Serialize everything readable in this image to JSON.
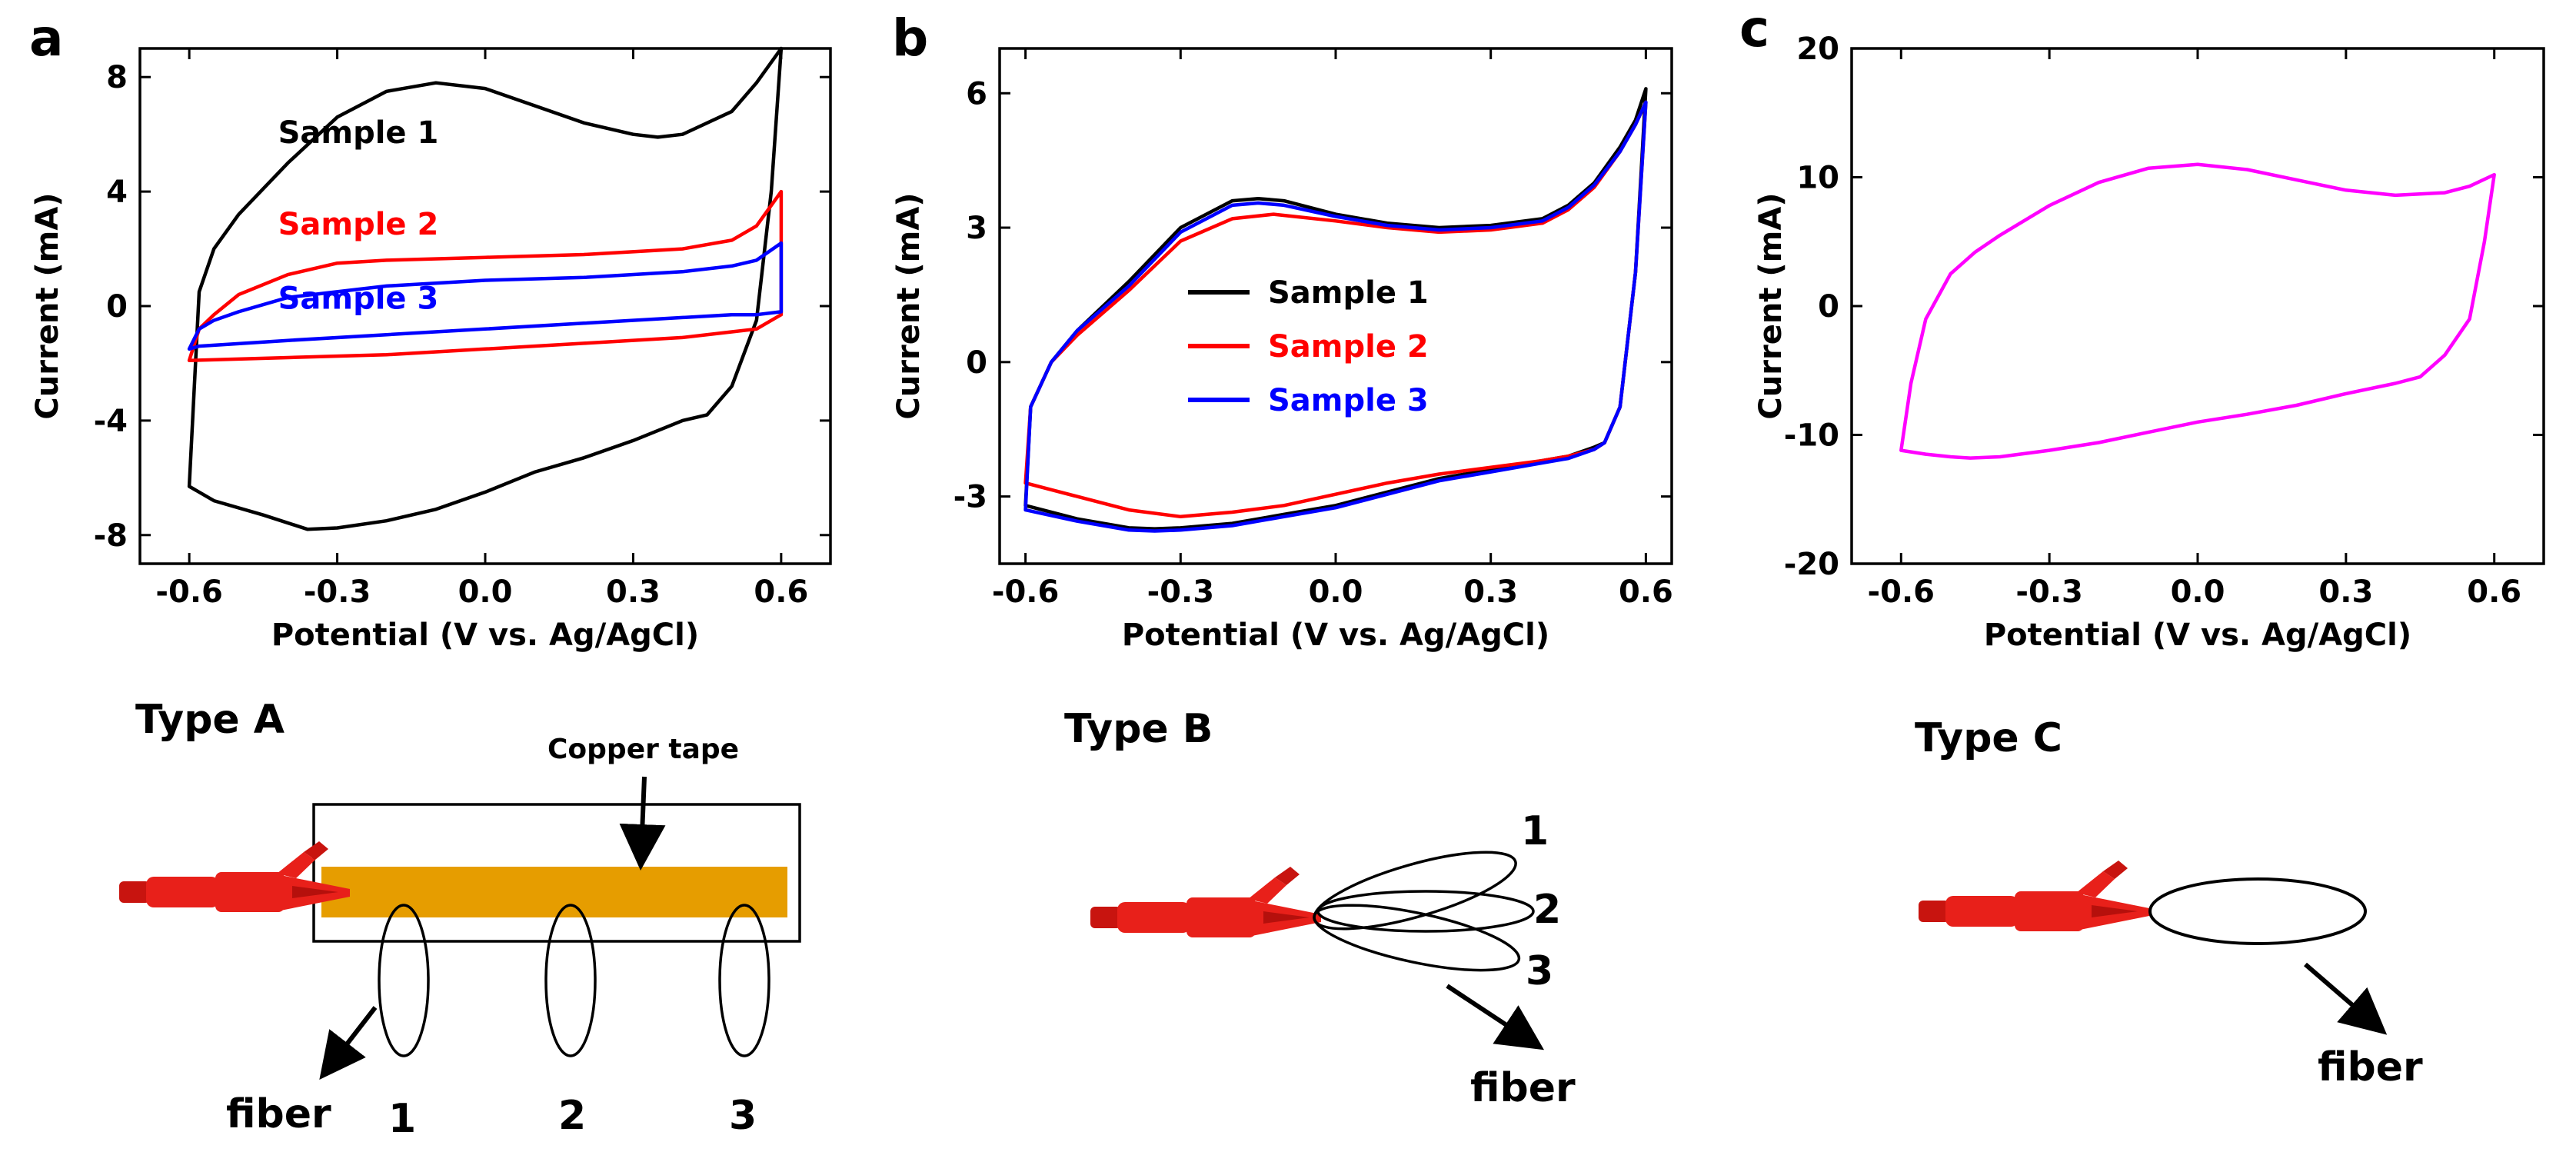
{
  "panel_labels": [
    "a",
    "b",
    "c"
  ],
  "chart_data": [
    {
      "type": "line",
      "panel": "a",
      "xlabel": "Potential (V vs. Ag/AgCl)",
      "ylabel": "Current (mA)",
      "xlim": [
        -0.7,
        0.7
      ],
      "ylim": [
        -9,
        9
      ],
      "xticks": [
        -0.6,
        -0.3,
        0.0,
        0.3,
        0.6
      ],
      "xtick_labels": [
        "-0.6",
        "-0.3",
        "0.0",
        "0.3",
        "0.6"
      ],
      "yticks": [
        -8,
        -4,
        0,
        4,
        8
      ],
      "ytick_labels": [
        "-8",
        "-4",
        "0",
        "4",
        "8"
      ],
      "grid": false,
      "series": [
        {
          "name": "Sample 1",
          "color": "#000000",
          "x": [
            -0.6,
            -0.58,
            -0.55,
            -0.5,
            -0.4,
            -0.3,
            -0.2,
            -0.1,
            0.0,
            0.1,
            0.2,
            0.3,
            0.35,
            0.4,
            0.5,
            0.55,
            0.6,
            0.58,
            0.55,
            0.5,
            0.45,
            0.4,
            0.3,
            0.2,
            0.1,
            0.0,
            -0.1,
            -0.2,
            -0.3,
            -0.36,
            -0.45,
            -0.55,
            -0.6
          ],
          "y": [
            -6.3,
            0.5,
            2.0,
            3.2,
            5.0,
            6.6,
            7.5,
            7.8,
            7.6,
            7.0,
            6.4,
            6.0,
            5.9,
            6.0,
            6.8,
            7.8,
            9.0,
            4.0,
            -0.5,
            -2.8,
            -3.8,
            -4.0,
            -4.7,
            -5.3,
            -5.8,
            -6.5,
            -7.1,
            -7.5,
            -7.75,
            -7.8,
            -7.3,
            -6.8,
            -6.3
          ]
        },
        {
          "name": "Sample 2",
          "color": "#ff0000",
          "x": [
            -0.6,
            -0.58,
            -0.55,
            -0.5,
            -0.4,
            -0.3,
            -0.2,
            0.0,
            0.2,
            0.4,
            0.5,
            0.55,
            0.6,
            0.6,
            0.55,
            0.5,
            0.4,
            0.2,
            0.0,
            -0.2,
            -0.4,
            -0.6
          ],
          "y": [
            -1.9,
            -0.8,
            -0.3,
            0.4,
            1.1,
            1.5,
            1.6,
            1.7,
            1.8,
            2.0,
            2.3,
            2.8,
            4.0,
            -0.3,
            -0.8,
            -0.9,
            -1.1,
            -1.3,
            -1.5,
            -1.7,
            -1.8,
            -1.9
          ]
        },
        {
          "name": "Sample 3",
          "color": "#0000ff",
          "x": [
            -0.6,
            -0.58,
            -0.55,
            -0.5,
            -0.4,
            -0.2,
            0.0,
            0.2,
            0.4,
            0.5,
            0.55,
            0.6,
            0.6,
            0.55,
            0.5,
            0.4,
            0.2,
            0.0,
            -0.2,
            -0.4,
            -0.58,
            -0.6
          ],
          "y": [
            -1.5,
            -0.8,
            -0.5,
            -0.2,
            0.3,
            0.7,
            0.9,
            1.0,
            1.2,
            1.4,
            1.6,
            2.2,
            -0.2,
            -0.3,
            -0.3,
            -0.4,
            -0.6,
            -0.8,
            -1.0,
            -1.2,
            -1.4,
            -1.5
          ]
        }
      ],
      "annotations": [
        {
          "text": "Sample 1",
          "x": -0.42,
          "y": 5.7,
          "color": "#000000"
        },
        {
          "text": "Sample 2",
          "x": -0.42,
          "y": 2.5,
          "color": "#ff0000"
        },
        {
          "text": "Sample 3",
          "x": -0.42,
          "y": -0.1,
          "color": "#0000ff"
        }
      ]
    },
    {
      "type": "line",
      "panel": "b",
      "xlabel": "Potential (V vs. Ag/AgCl)",
      "ylabel": "Current (mA)",
      "xlim": [
        -0.65,
        0.65
      ],
      "ylim": [
        -4.5,
        7
      ],
      "xticks": [
        -0.6,
        -0.3,
        0.0,
        0.3,
        0.6
      ],
      "xtick_labels": [
        "-0.6",
        "-0.3",
        "0.0",
        "0.3",
        "0.6"
      ],
      "yticks": [
        -3,
        0,
        3,
        6
      ],
      "ytick_labels": [
        "-3",
        "0",
        "3",
        "6"
      ],
      "grid": false,
      "legend": {
        "position": "center",
        "entries": [
          "Sample 1",
          "Sample 2",
          "Sample 3"
        ]
      },
      "series": [
        {
          "name": "Sample 1",
          "color": "#000000",
          "x": [
            -0.6,
            -0.59,
            -0.55,
            -0.5,
            -0.4,
            -0.3,
            -0.2,
            -0.15,
            -0.1,
            0.0,
            0.1,
            0.2,
            0.3,
            0.4,
            0.45,
            0.5,
            0.55,
            0.58,
            0.6,
            0.58,
            0.55,
            0.52,
            0.5,
            0.45,
            0.4,
            0.3,
            0.2,
            0.1,
            0.0,
            -0.1,
            -0.2,
            -0.3,
            -0.35,
            -0.4,
            -0.5,
            -0.6
          ],
          "y": [
            -3.2,
            -1.0,
            0.0,
            0.7,
            1.8,
            3.0,
            3.6,
            3.65,
            3.6,
            3.3,
            3.1,
            3.0,
            3.05,
            3.2,
            3.5,
            4.0,
            4.8,
            5.4,
            6.1,
            2.0,
            -1.0,
            -1.8,
            -1.9,
            -2.1,
            -2.2,
            -2.4,
            -2.6,
            -2.9,
            -3.2,
            -3.4,
            -3.6,
            -3.7,
            -3.72,
            -3.7,
            -3.5,
            -3.2
          ]
        },
        {
          "name": "Sample 2",
          "color": "#ff0000",
          "x": [
            -0.6,
            -0.59,
            -0.55,
            -0.5,
            -0.4,
            -0.3,
            -0.2,
            -0.12,
            0.0,
            0.1,
            0.2,
            0.3,
            0.4,
            0.45,
            0.5,
            0.55,
            0.58,
            0.6,
            0.58,
            0.55,
            0.52,
            0.5,
            0.45,
            0.4,
            0.3,
            0.2,
            0.1,
            0.0,
            -0.1,
            -0.2,
            -0.3,
            -0.4,
            -0.5,
            -0.6
          ],
          "y": [
            -2.7,
            -1.0,
            0.0,
            0.6,
            1.6,
            2.7,
            3.2,
            3.3,
            3.15,
            3.0,
            2.9,
            2.95,
            3.1,
            3.4,
            3.9,
            4.7,
            5.3,
            5.8,
            2.0,
            -1.0,
            -1.8,
            -1.95,
            -2.1,
            -2.2,
            -2.35,
            -2.5,
            -2.7,
            -2.95,
            -3.2,
            -3.35,
            -3.45,
            -3.3,
            -3.0,
            -2.7
          ]
        },
        {
          "name": "Sample 3",
          "color": "#0000ff",
          "x": [
            -0.6,
            -0.59,
            -0.55,
            -0.5,
            -0.4,
            -0.3,
            -0.2,
            -0.15,
            -0.1,
            0.0,
            0.1,
            0.2,
            0.3,
            0.4,
            0.45,
            0.5,
            0.55,
            0.58,
            0.6,
            0.58,
            0.55,
            0.52,
            0.5,
            0.45,
            0.4,
            0.3,
            0.2,
            0.1,
            0.0,
            -0.1,
            -0.2,
            -0.3,
            -0.35,
            -0.4,
            -0.5,
            -0.6
          ],
          "y": [
            -3.3,
            -1.0,
            0.0,
            0.7,
            1.7,
            2.9,
            3.5,
            3.55,
            3.5,
            3.25,
            3.05,
            2.95,
            3.0,
            3.15,
            3.45,
            3.95,
            4.7,
            5.3,
            5.8,
            2.0,
            -1.0,
            -1.8,
            -1.95,
            -2.15,
            -2.25,
            -2.45,
            -2.65,
            -2.95,
            -3.25,
            -3.45,
            -3.65,
            -3.75,
            -3.77,
            -3.75,
            -3.55,
            -3.3
          ]
        }
      ]
    },
    {
      "type": "line",
      "panel": "c",
      "xlabel": "Potential (V vs. Ag/AgCl)",
      "ylabel": "Current (mA)",
      "xlim": [
        -0.7,
        0.7
      ],
      "ylim": [
        -20,
        20
      ],
      "xticks": [
        -0.6,
        -0.3,
        0.0,
        0.3,
        0.6
      ],
      "xtick_labels": [
        "-0.6",
        "-0.3",
        "0.0",
        "0.3",
        "0.6"
      ],
      "yticks": [
        -20,
        -10,
        0,
        10,
        20
      ],
      "ytick_labels": [
        "-20",
        "-10",
        "0",
        "10",
        "20"
      ],
      "grid": false,
      "series": [
        {
          "name": "Type C",
          "color": "#ff00ff",
          "x": [
            -0.6,
            -0.58,
            -0.55,
            -0.5,
            -0.45,
            -0.4,
            -0.3,
            -0.2,
            -0.1,
            0.0,
            0.1,
            0.2,
            0.3,
            0.4,
            0.5,
            0.55,
            0.6,
            0.58,
            0.55,
            0.5,
            0.45,
            0.4,
            0.3,
            0.2,
            0.1,
            0.0,
            -0.1,
            -0.2,
            -0.3,
            -0.4,
            -0.46,
            -0.5,
            -0.55,
            -0.6
          ],
          "y": [
            -11.2,
            -6.0,
            -1.0,
            2.5,
            4.2,
            5.5,
            7.8,
            9.6,
            10.7,
            11.0,
            10.6,
            9.8,
            9.0,
            8.6,
            8.8,
            9.3,
            10.2,
            5.0,
            -1.0,
            -3.8,
            -5.5,
            -6.0,
            -6.8,
            -7.7,
            -8.4,
            -9.0,
            -9.8,
            -10.6,
            -11.2,
            -11.7,
            -11.8,
            -11.7,
            -11.5,
            -11.2
          ]
        }
      ]
    }
  ],
  "diagrams": [
    {
      "title": "Type A",
      "tape_label": "Copper tape",
      "fiber_label": "fiber",
      "numbers": [
        "1",
        "2",
        "3"
      ],
      "tape_color": "#e69d00",
      "clip_color": "#e8201a"
    },
    {
      "title": "Type B",
      "fiber_label": "fiber",
      "numbers": [
        "1",
        "2",
        "3"
      ],
      "clip_color": "#e8201a"
    },
    {
      "title": "Type C",
      "fiber_label": "fiber",
      "clip_color": "#e8201a"
    }
  ]
}
